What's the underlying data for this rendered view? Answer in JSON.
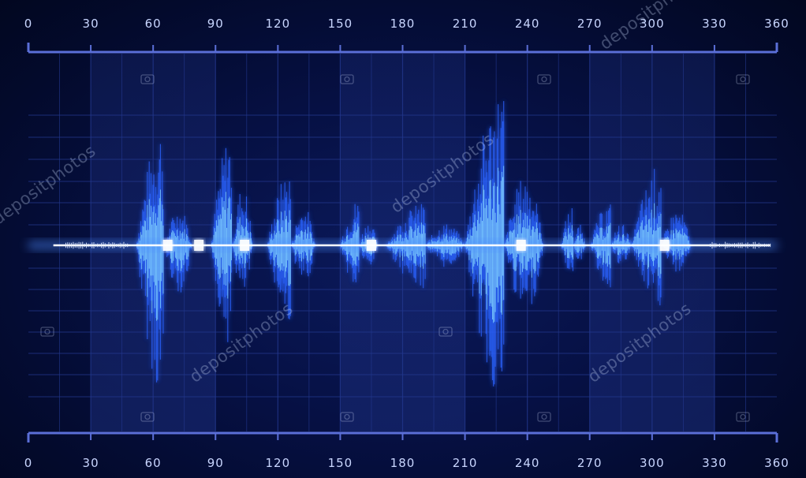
{
  "scale": {
    "min": 0,
    "max": 360,
    "ticks": [
      "0",
      "30",
      "60",
      "90",
      "120",
      "150",
      "180",
      "210",
      "240",
      "270",
      "300",
      "330",
      "360"
    ]
  },
  "watermark": {
    "text": "depositphotos"
  },
  "colors": {
    "background": "#061043",
    "grid": "#23388f",
    "scale": "#5b6fd8",
    "wave_core": "#ffffff",
    "wave_outer": "#2b63ff",
    "wave_inner": "#7fd0ff"
  },
  "icons": [
    "camera-icon"
  ]
}
